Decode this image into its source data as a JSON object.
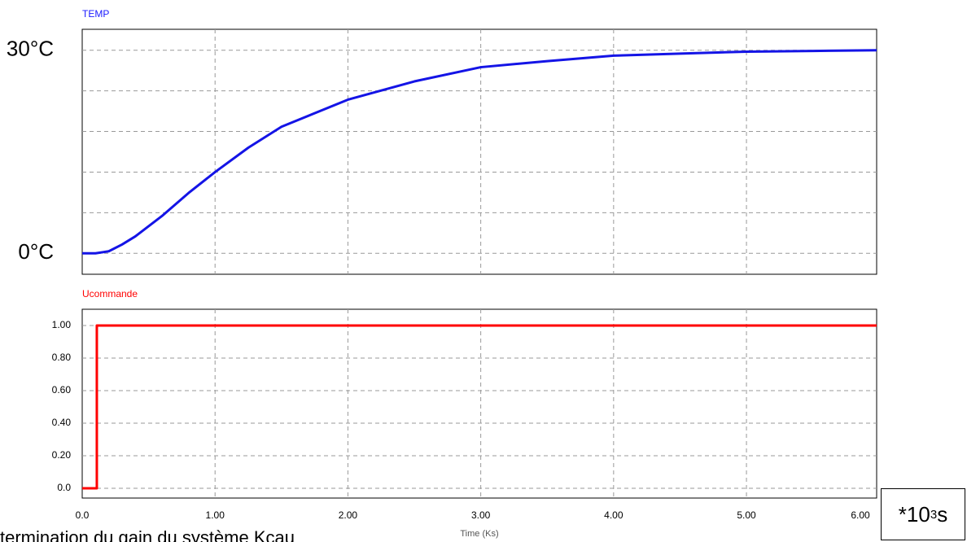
{
  "chart_data": [
    {
      "type": "line",
      "title": "TEMP",
      "title_color": "#1a1aff",
      "x": [
        0,
        0.1,
        0.2,
        0.3,
        0.4,
        0.6,
        0.8,
        1.0,
        1.25,
        1.5,
        2.0,
        2.5,
        3.0,
        3.5,
        4.0,
        4.5,
        5.0,
        5.5,
        5.98
      ],
      "series": [
        {
          "name": "TEMP",
          "color": "#1414e6",
          "values": [
            0,
            0,
            0.3,
            1.3,
            2.5,
            5.5,
            8.9,
            12,
            15.6,
            18.7,
            22.7,
            25.4,
            27.5,
            28.4,
            29.2,
            29.5,
            29.8,
            29.9,
            30
          ]
        }
      ],
      "xlim": [
        0,
        5.98
      ],
      "xgrid": [
        1,
        2,
        3,
        4,
        5
      ],
      "ylim": [
        -3.1,
        33.1
      ],
      "yticks": [
        {
          "value": 0,
          "label": "0°C"
        },
        {
          "value": 30,
          "label": "30°C"
        }
      ],
      "ygrid": [
        6,
        12,
        18,
        24
      ],
      "grid": true
    },
    {
      "type": "line",
      "title": "Ucommande",
      "title_color": "#ff0000",
      "x": [
        0,
        0.11,
        0.11,
        5.98
      ],
      "series": [
        {
          "name": "Ucommande",
          "color": "#ff0000",
          "values": [
            0,
            0,
            1,
            1
          ]
        }
      ],
      "xlim": [
        0,
        5.98
      ],
      "xticks": [
        {
          "value": 0,
          "label": "0.0"
        },
        {
          "value": 1,
          "label": "1.00"
        },
        {
          "value": 2,
          "label": "2.00"
        },
        {
          "value": 3,
          "label": "3.00"
        },
        {
          "value": 4,
          "label": "4.00"
        },
        {
          "value": 5,
          "label": "5.00"
        },
        {
          "value": 6,
          "label": "6.00"
        }
      ],
      "xlabel": "Time (Ks)",
      "ylim": [
        -0.06,
        1.1
      ],
      "yticks": [
        {
          "value": 0,
          "label": "0.0"
        },
        {
          "value": 0.2,
          "label": "0.20"
        },
        {
          "value": 0.4,
          "label": "0.40"
        },
        {
          "value": 0.6,
          "label": "0.60"
        },
        {
          "value": 0.8,
          "label": "0.80"
        },
        {
          "value": 1,
          "label": "1.00"
        }
      ],
      "grid": true
    }
  ],
  "caption": "termination du gain du système Kcau",
  "unit_box": {
    "base": "*10",
    "exponent": "3",
    "unit": "s"
  }
}
